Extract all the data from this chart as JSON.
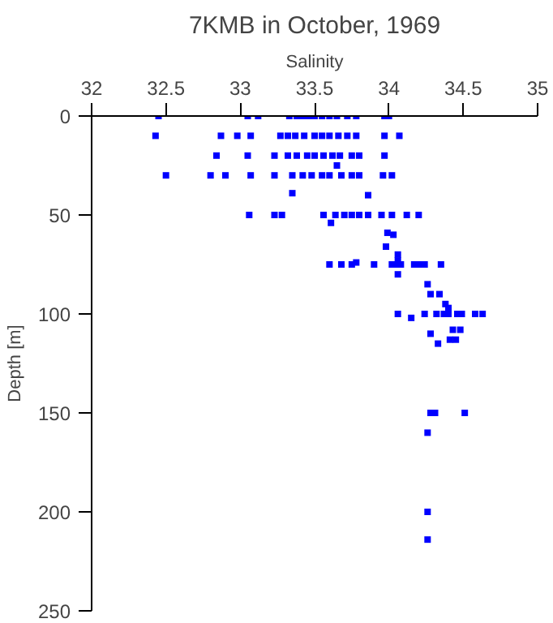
{
  "chart_data": {
    "type": "scatter",
    "title": "7KMB in October, 1969",
    "xlabel": "Salinity",
    "ylabel": "Depth [m]",
    "marker": "square",
    "grid": false,
    "xlim": [
      32,
      35
    ],
    "xticks": [
      32,
      32.5,
      33,
      33.5,
      34,
      34.5,
      35
    ],
    "ylim": [
      250,
      0
    ],
    "yticks": [
      0,
      50,
      100,
      150,
      200,
      250
    ],
    "series": [
      {
        "color": "#0000ff",
        "x": [
          32.45,
          33.05,
          33.12,
          33.33,
          33.38,
          33.42,
          33.46,
          33.5,
          33.55,
          33.6,
          33.65,
          33.72,
          33.78,
          33.97,
          34.0,
          32.43,
          32.87,
          32.98,
          33.07,
          33.27,
          33.32,
          33.37,
          33.43,
          33.5,
          33.55,
          33.6,
          33.66,
          33.72,
          33.78,
          33.97,
          34.07,
          32.84,
          33.05,
          33.23,
          33.32,
          33.38,
          33.45,
          33.5,
          33.56,
          33.62,
          33.67,
          33.75,
          33.8,
          33.97,
          33.65,
          32.5,
          32.8,
          32.9,
          33.07,
          33.23,
          33.35,
          33.42,
          33.48,
          33.55,
          33.6,
          33.68,
          33.75,
          33.8,
          33.96,
          34.02,
          33.35,
          33.86,
          33.06,
          33.23,
          33.28,
          33.56,
          33.64,
          33.7,
          33.75,
          33.8,
          33.86,
          33.95,
          34.02,
          34.12,
          34.2,
          33.61,
          33.99,
          34.03,
          33.98,
          34.06,
          34.06,
          33.6,
          33.68,
          33.75,
          33.78,
          33.9,
          34.02,
          34.05,
          34.08,
          34.17,
          34.2,
          34.24,
          34.35,
          34.06,
          34.26,
          34.28,
          34.34,
          34.38,
          34.4,
          34.06,
          34.24,
          34.32,
          34.37,
          34.4,
          34.46,
          34.49,
          34.58,
          34.63,
          34.15,
          34.43,
          34.48,
          34.28,
          34.41,
          34.45,
          34.33,
          34.28,
          34.31,
          34.51,
          34.26,
          34.26,
          34.26
        ],
        "values": [
          0,
          0,
          0,
          0,
          0,
          0,
          0,
          0,
          0,
          0,
          0,
          0,
          0,
          0,
          0,
          10,
          10,
          10,
          10,
          10,
          10,
          10,
          10,
          10,
          10,
          10,
          10,
          10,
          10,
          10,
          10,
          20,
          20,
          20,
          20,
          20,
          20,
          20,
          20,
          20,
          20,
          20,
          20,
          20,
          25,
          30,
          30,
          30,
          30,
          30,
          30,
          30,
          30,
          30,
          30,
          30,
          30,
          30,
          30,
          30,
          39,
          40,
          50,
          50,
          50,
          50,
          50,
          50,
          50,
          50,
          50,
          50,
          50,
          50,
          50,
          54,
          59,
          60,
          66,
          70,
          73,
          75,
          75,
          75,
          74,
          75,
          75,
          75,
          75,
          75,
          75,
          75,
          75,
          80,
          85,
          90,
          90,
          95,
          97,
          100,
          100,
          100,
          100,
          100,
          100,
          100,
          100,
          100,
          102,
          108,
          108,
          110,
          113,
          113,
          115,
          150,
          150,
          150,
          160,
          200,
          214
        ]
      }
    ]
  }
}
